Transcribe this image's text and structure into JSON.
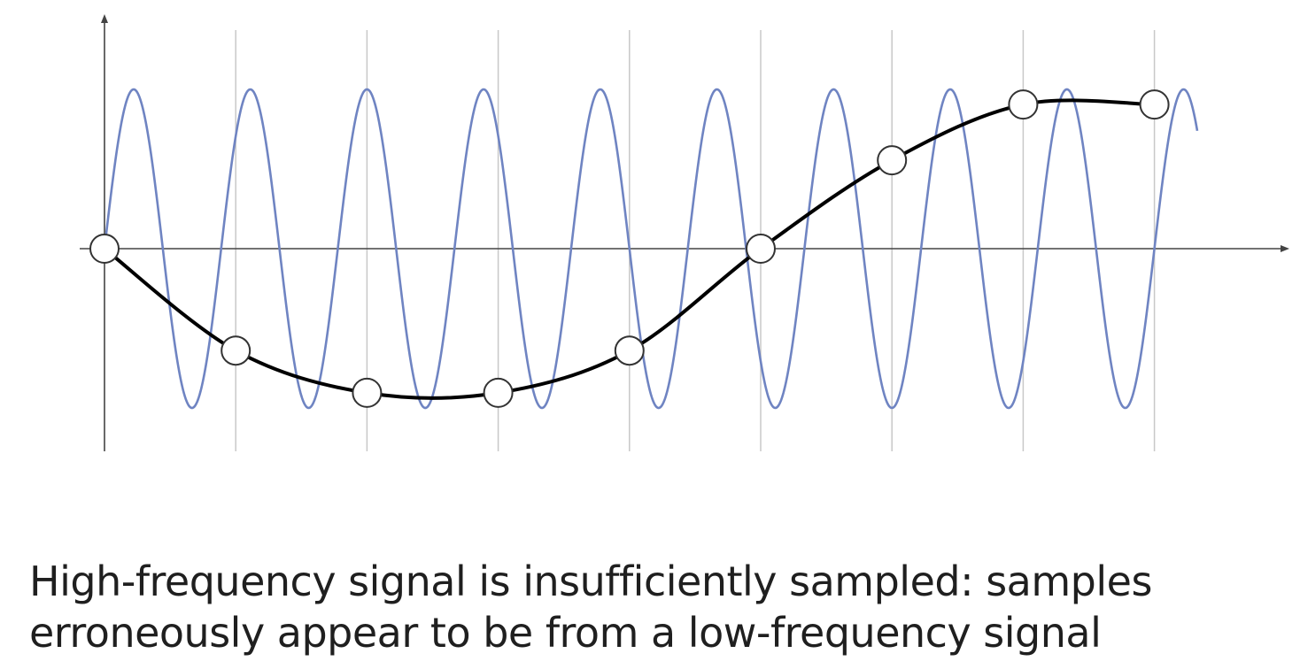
{
  "caption": {
    "line1": "High-frequency signal is insufficiently sampled: samples",
    "line2": "erroneously appear to be from a low-frequency signal"
  },
  "colors": {
    "high_frequency_signal": "#6f84c2",
    "low_frequency_signal": "#000000",
    "sample_grid": "#c8c8c8",
    "axis": "#444444",
    "sample_fill": "#ffffff",
    "sample_stroke": "#333333"
  },
  "signals": {
    "high_frequency": {
      "cycles_per_sample_interval": 1.125,
      "amplitude": 1.0
    },
    "low_frequency": {
      "samples": [
        0,
        -0.64,
        -0.905,
        -0.905,
        -0.64,
        0,
        0.555,
        0.905,
        0.905
      ]
    }
  },
  "sampling": {
    "sample_count": 9,
    "visible_grid_lines": 8
  }
}
